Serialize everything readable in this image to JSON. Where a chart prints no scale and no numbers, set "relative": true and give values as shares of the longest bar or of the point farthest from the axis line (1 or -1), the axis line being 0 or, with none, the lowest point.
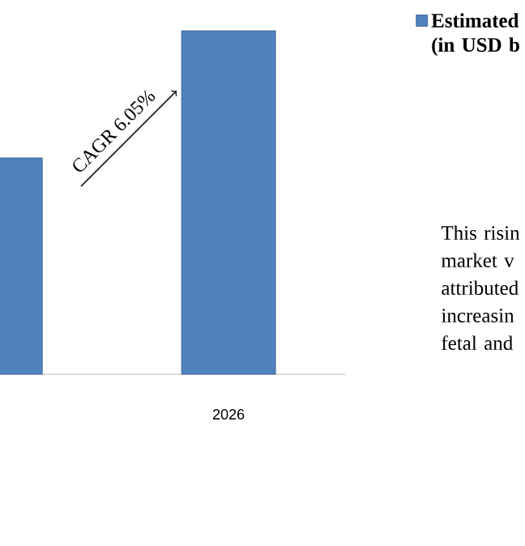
{
  "chart_data": {
    "type": "bar",
    "relative": true,
    "categories": [
      null,
      "2026"
    ],
    "series": [
      {
        "name": "Estimated (in USD b",
        "color": "#4f81bd",
        "values": [
          0.63,
          1
        ]
      }
    ],
    "legend": "right",
    "annotations": [
      "CAGR 6.05%",
      "This risin market v attributed increasin fetal and"
    ]
  }
}
